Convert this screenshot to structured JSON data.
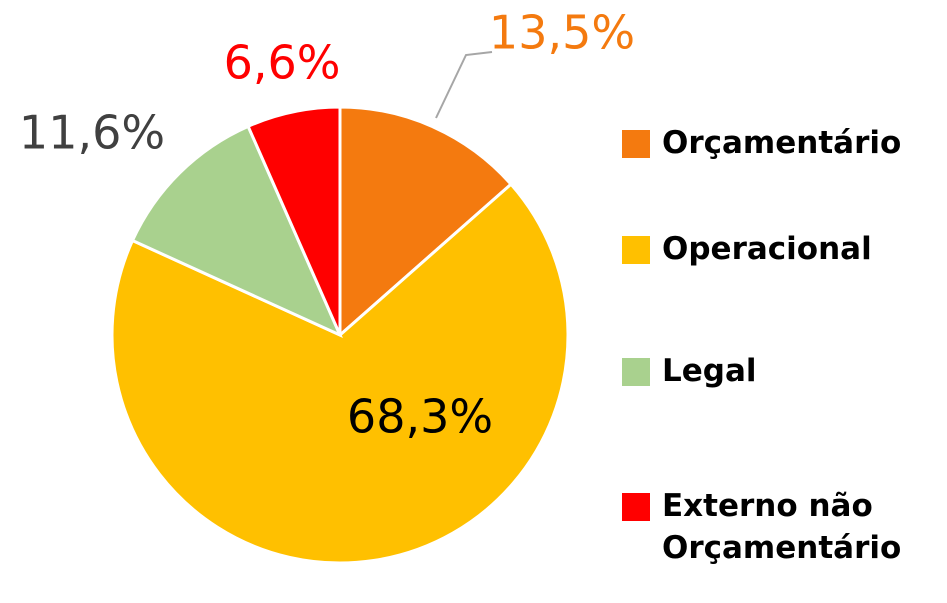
{
  "chart_data": {
    "type": "pie",
    "categories": [
      "Orçamentário",
      "Operacional",
      "Legal",
      "Externo não Orçamentário"
    ],
    "values": [
      13.5,
      68.3,
      11.6,
      6.6
    ],
    "value_labels": [
      "13,5%",
      "68,3%",
      "11,6%",
      "6,6%"
    ],
    "colors": [
      "#F47A0F",
      "#FFC000",
      "#A9D18E",
      "#FF0000"
    ],
    "label_colors": [
      "#F47A0F",
      "#000000",
      "#404040",
      "#FF0000"
    ],
    "legend": "right"
  }
}
